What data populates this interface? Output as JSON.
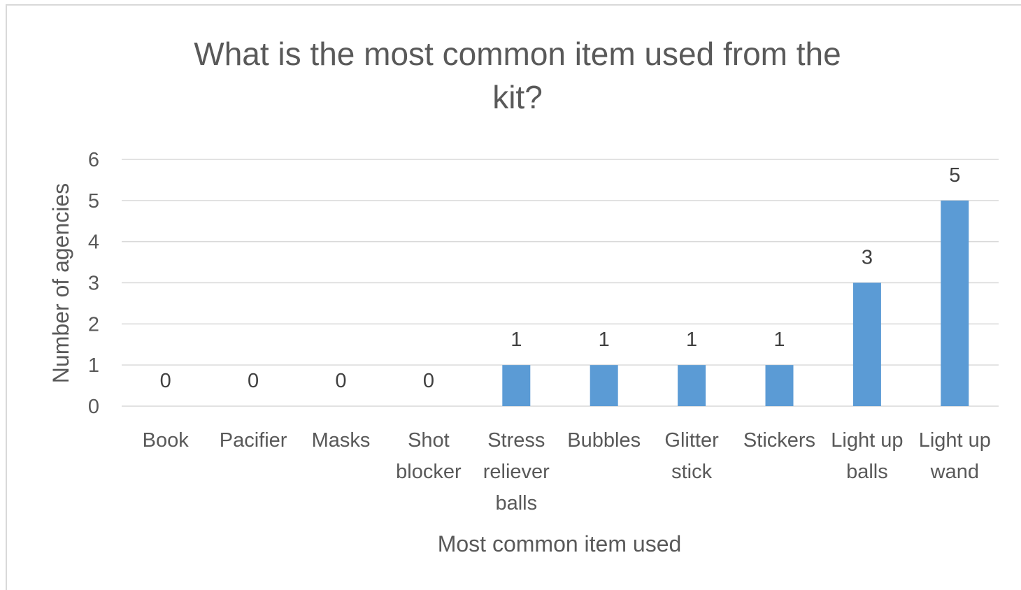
{
  "chart_data": {
    "type": "bar",
    "title_lines": [
      "What is the most common  item used from the",
      "kit?"
    ],
    "xlabel": "Most common item used",
    "ylabel": "Number of agencies",
    "ylim": [
      0,
      6
    ],
    "yticks": [
      0,
      1,
      2,
      3,
      4,
      5,
      6
    ],
    "grid": true,
    "legend": "none",
    "bar_color": "#5b9bd5",
    "categories": [
      [
        "Book"
      ],
      [
        "Pacifier"
      ],
      [
        "Masks"
      ],
      [
        "Shot",
        "blocker"
      ],
      [
        "Stress",
        "reliever",
        "balls"
      ],
      [
        "Bubbles"
      ],
      [
        "Glitter",
        "stick"
      ],
      [
        "Stickers"
      ],
      [
        "Light up",
        "balls"
      ],
      [
        "Light up",
        "wand"
      ]
    ],
    "values": [
      0,
      0,
      0,
      0,
      1,
      1,
      1,
      1,
      3,
      5
    ],
    "data_labels": [
      "0",
      "0",
      "0",
      "0",
      "1",
      "1",
      "1",
      "1",
      "3",
      "5"
    ]
  }
}
